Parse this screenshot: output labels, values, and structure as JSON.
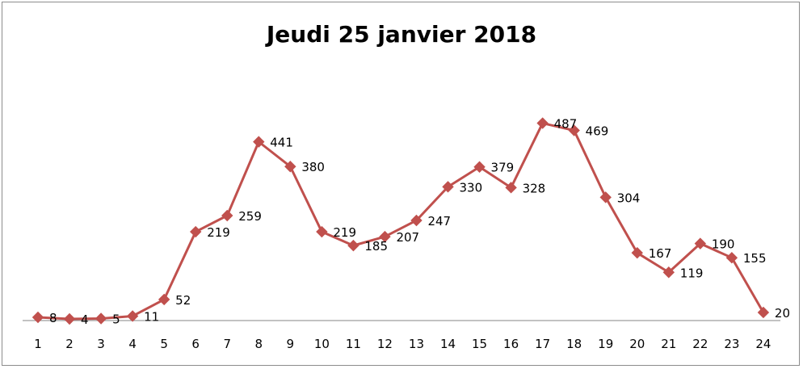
{
  "chart_data": {
    "type": "line",
    "title": "Jeudi 25 janvier 2018",
    "xlabel": "",
    "ylabel": "",
    "categories": [
      "1",
      "2",
      "3",
      "4",
      "5",
      "6",
      "7",
      "8",
      "9",
      "10",
      "11",
      "12",
      "13",
      "14",
      "15",
      "16",
      "17",
      "18",
      "19",
      "20",
      "21",
      "22",
      "23",
      "24"
    ],
    "series": [
      {
        "values": [
          8,
          4,
          5,
          11,
          52,
          219,
          259,
          441,
          380,
          219,
          185,
          207,
          247,
          330,
          379,
          328,
          487,
          469,
          304,
          167,
          119,
          190,
          155,
          20
        ],
        "color": "#c0504d",
        "marker": "diamond"
      }
    ],
    "ylim": [
      0,
      500
    ],
    "grid": false,
    "legend": "none",
    "data_labels": true
  }
}
